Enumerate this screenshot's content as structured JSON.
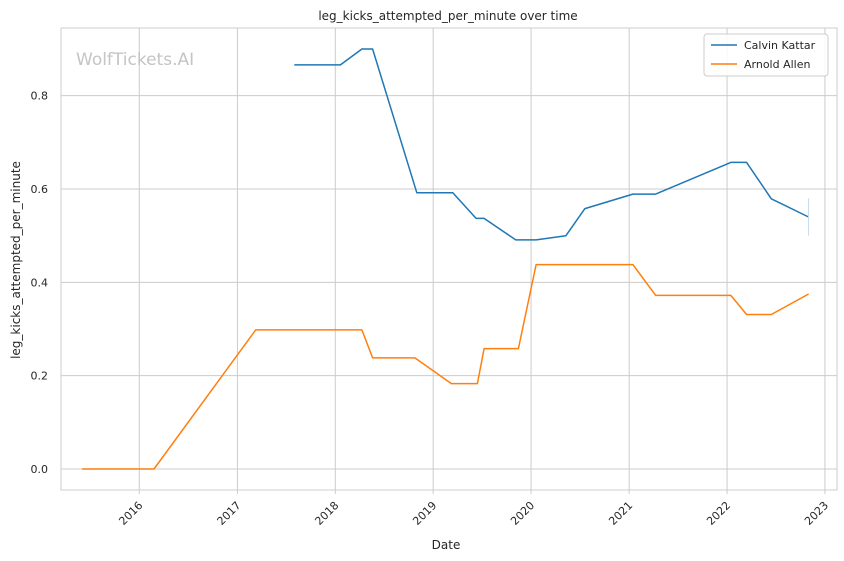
{
  "chart_data": {
    "type": "line",
    "title": "leg_kicks_attempted_per_minute over time",
    "xlabel": "Date",
    "ylabel": "leg_kicks_attempted_per_minute",
    "watermark": "WolfTickets.AI",
    "xlim": [
      "2015-03-15",
      "2023-02-15"
    ],
    "ylim": [
      -0.045,
      0.945
    ],
    "x_ticks": [
      "2016",
      "2017",
      "2018",
      "2019",
      "2020",
      "2021",
      "2022",
      "2023"
    ],
    "y_ticks": [
      "0.0",
      "0.2",
      "0.4",
      "0.6",
      "0.8"
    ],
    "grid": true,
    "legend_position": "top-right",
    "series": [
      {
        "name": "Calvin Kattar",
        "color": "#1f77b4",
        "points": [
          [
            "2017-08-01",
            0.866
          ],
          [
            "2018-01-20",
            0.866
          ],
          [
            "2018-04-10",
            0.9
          ],
          [
            "2018-05-20",
            0.9
          ],
          [
            "2018-11-01",
            0.592
          ],
          [
            "2019-03-15",
            0.592
          ],
          [
            "2019-06-10",
            0.537
          ],
          [
            "2019-07-10",
            0.537
          ],
          [
            "2019-11-05",
            0.491
          ],
          [
            "2020-01-20",
            0.491
          ],
          [
            "2020-05-10",
            0.5
          ],
          [
            "2020-07-20",
            0.558
          ],
          [
            "2021-01-15",
            0.589
          ],
          [
            "2021-04-10",
            0.589
          ],
          [
            "2022-01-15",
            0.657
          ],
          [
            "2022-03-15",
            0.657
          ],
          [
            "2022-06-15",
            0.579
          ],
          [
            "2022-11-01",
            0.54
          ]
        ]
      },
      {
        "name": "Arnold Allen",
        "color": "#ff7f0e",
        "points": [
          [
            "2015-06-01",
            0.0
          ],
          [
            "2016-02-25",
            0.0
          ],
          [
            "2017-03-10",
            0.298
          ],
          [
            "2018-04-10",
            0.298
          ],
          [
            "2018-05-20",
            0.238
          ],
          [
            "2018-10-25",
            0.238
          ],
          [
            "2019-03-10",
            0.183
          ],
          [
            "2019-06-15",
            0.183
          ],
          [
            "2019-07-10",
            0.258
          ],
          [
            "2019-11-15",
            0.258
          ],
          [
            "2020-01-20",
            0.438
          ],
          [
            "2021-01-15",
            0.438
          ],
          [
            "2021-04-10",
            0.372
          ],
          [
            "2022-01-15",
            0.372
          ],
          [
            "2022-03-15",
            0.331
          ],
          [
            "2022-06-15",
            0.331
          ],
          [
            "2022-11-01",
            0.375
          ]
        ]
      }
    ]
  }
}
